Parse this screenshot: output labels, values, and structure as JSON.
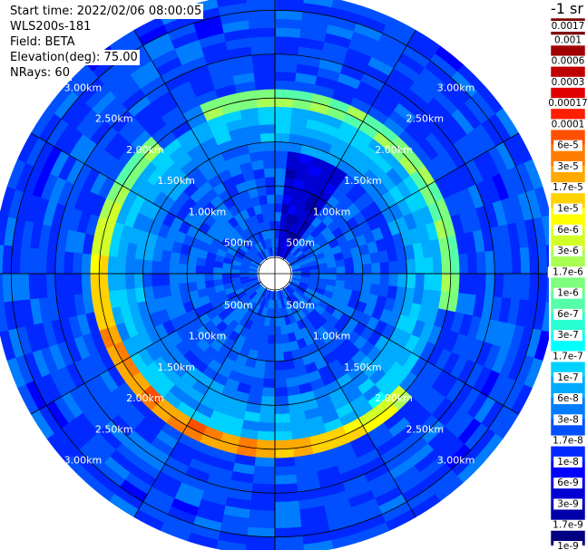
{
  "info": {
    "start_time": "Start time: 2022/02/06 08:00:05",
    "system": "WLS200s-181",
    "field": "Field: BETA",
    "elevation": "Elevation(deg): 75.00",
    "nrays": "NRays: 60"
  },
  "colorbar": {
    "units_label": "-1 sr",
    "labels": [
      "0.0017",
      "0.001",
      "0.0006",
      "0.0003",
      "0.00017",
      "0.0001",
      "6e-5",
      "3e-5",
      "1.7e-5",
      "1e-5",
      "6e-6",
      "3e-6",
      "1.7e-6",
      "1e-6",
      "6e-7",
      "3e-7",
      "1.7e-7",
      "1e-7",
      "6e-8",
      "3e-8",
      "1.7e-8",
      "1e-8",
      "6e-9",
      "3e-9",
      "1.7e-9",
      "1e-9"
    ],
    "colors": [
      "#7f0000",
      "#a00000",
      "#c00000",
      "#e00000",
      "#ff1e00",
      "#ff5000",
      "#ff7d00",
      "#ffaa00",
      "#ffd200",
      "#ffff00",
      "#d2ff28",
      "#aaff55",
      "#7dff7d",
      "#55ffaa",
      "#28ffd2",
      "#00ffff",
      "#00d2ff",
      "#00aaff",
      "#007dff",
      "#0050ff",
      "#0028ff",
      "#0000ff",
      "#0000d2",
      "#0000aa",
      "#000080"
    ]
  },
  "chart_data": {
    "type": "heatmap",
    "projection": "polar-ppi",
    "field": "BETA",
    "units": "sr-1",
    "elevation_deg": 75.0,
    "n_rays": 60,
    "range_rings_labels": [
      "500m",
      "1.00km",
      "1.50km",
      "2.00km",
      "2.50km",
      "3.00km"
    ],
    "range_rings_km": [
      0.5,
      1.0,
      1.5,
      2.0,
      2.5,
      3.0
    ],
    "max_range_km": 3.2,
    "range_gate_km": 0.1,
    "ring_label_azimuths_deg": [
      315,
      45,
      225,
      135
    ],
    "spoke_step_deg": 30,
    "notes_values": {
      "near_field_level": "1e-8 to 3e-8",
      "peak_ring_range_km": 2.05,
      "peak_ring_level_south_west": "3e-5 to 6e-5",
      "peak_ring_level_north": "1e-6 to 1e-5",
      "beyond_ring_level": "6e-9 to 1e-8",
      "dark_sector_azimuth_deg": [
        5,
        35
      ],
      "dark_sector_level": "1.7e-9 to 3e-9"
    }
  }
}
